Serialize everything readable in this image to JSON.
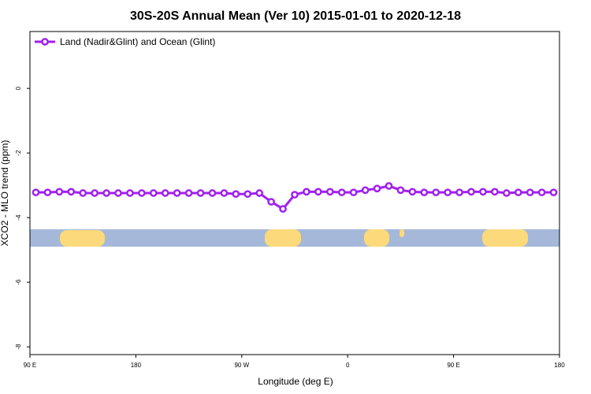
{
  "chart_data": {
    "type": "line",
    "title": "30S-20S Annual Mean (Ver 10)   2015-01-01 to 2020-12-18",
    "x_label": "Longitude (deg E)",
    "y_label": "XCO2 - MLO trend (ppm)",
    "x": [
      95,
      105,
      115,
      125,
      135,
      145,
      155,
      165,
      175,
      185,
      195,
      205,
      215,
      225,
      235,
      245,
      255,
      265,
      275,
      285,
      295,
      305,
      315,
      325,
      335,
      345,
      355,
      365,
      375,
      385,
      395,
      405,
      415,
      425,
      435,
      445,
      455,
      465,
      475,
      485,
      495,
      505,
      515,
      525,
      535
    ],
    "series": [
      {
        "name": "Land (Nadir&Glint) and Ocean (Glint)",
        "color": "#a020f0",
        "values": [
          -3.22,
          -3.22,
          -3.2,
          -3.2,
          -3.24,
          -3.24,
          -3.24,
          -3.24,
          -3.24,
          -3.24,
          -3.24,
          -3.24,
          -3.24,
          -3.24,
          -3.24,
          -3.24,
          -3.24,
          -3.27,
          -3.27,
          -3.24,
          -3.51,
          -3.73,
          -3.29,
          -3.2,
          -3.2,
          -3.2,
          -3.22,
          -3.22,
          -3.15,
          -3.1,
          -3.02,
          -3.15,
          -3.2,
          -3.22,
          -3.22,
          -3.22,
          -3.22,
          -3.2,
          -3.2,
          -3.2,
          -3.24,
          -3.22,
          -3.22,
          -3.22,
          -3.22
        ]
      }
    ],
    "xlim": [
      90,
      540
    ],
    "xticks": [
      {
        "value": 90,
        "label": "90 E"
      },
      {
        "value": 180,
        "label": "180"
      },
      {
        "value": 270,
        "label": "90 W"
      },
      {
        "value": 360,
        "label": "0"
      },
      {
        "value": 450,
        "label": "90 E"
      },
      {
        "value": 540,
        "label": "180"
      }
    ],
    "ylim": [
      -8.24,
      1.76
    ],
    "yticks": [
      0,
      -2,
      -4,
      -6,
      -8
    ],
    "legend": "top-left"
  }
}
